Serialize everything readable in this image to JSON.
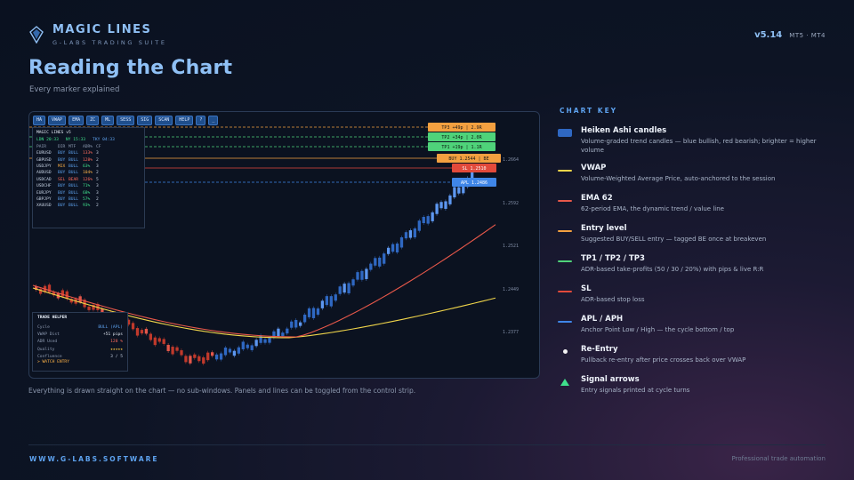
{
  "brand": {
    "name": "MAGIC LINES",
    "subtitle": "G-LABS TRADING SUITE"
  },
  "version": {
    "number": "v5.14",
    "platforms": "MT5 · MT4"
  },
  "page": {
    "title": "Reading the Chart",
    "subtitle": "Every marker explained"
  },
  "toolbar": [
    "HA",
    "VWAP",
    "EMA",
    "ZC",
    "ML",
    "SESS",
    "SIG",
    "SCAN",
    "HELP",
    "?",
    "_"
  ],
  "dashboard": {
    "title": "MAGIC LINES v5",
    "sessions": [
      {
        "label": "LDN 20:33",
        "color": "#3fe08c"
      },
      {
        "label": "NY 15:33",
        "color": "#3fe08c"
      },
      {
        "label": "TKY 04:33",
        "color": "#5ea3f0"
      }
    ],
    "headers": [
      "PAIR",
      "DIR",
      "MTF",
      "ADR%",
      "CF"
    ],
    "rows": [
      {
        "pair": "EURUSD",
        "dir": "BUY",
        "mtf": "BULL",
        "adr": "133%",
        "cf": "3",
        "dir_color": "#5ea3f0",
        "mtf_color": "#5ea3f0",
        "adr_color": "#ff6b5b"
      },
      {
        "pair": "GBPUSD",
        "dir": "BUY",
        "mtf": "BULL",
        "adr": "128%",
        "cf": "2",
        "dir_color": "#5ea3f0",
        "mtf_color": "#5ea3f0",
        "adr_color": "#ff6b5b"
      },
      {
        "pair": "USDJPY",
        "dir": "MIX",
        "mtf": "BULL",
        "adr": "63%",
        "cf": "3",
        "dir_color": "#ffb347",
        "mtf_color": "#5ea3f0",
        "adr_color": "#3fe08c"
      },
      {
        "pair": "AUDUSD",
        "dir": "BUY",
        "mtf": "BULL",
        "adr": "104%",
        "cf": "2",
        "dir_color": "#5ea3f0",
        "mtf_color": "#5ea3f0",
        "adr_color": "#ffb347"
      },
      {
        "pair": "USDCAD",
        "dir": "SEL",
        "mtf": "BEAR",
        "adr": "126%",
        "cf": "5",
        "dir_color": "#ff6b5b",
        "mtf_color": "#ff6b5b",
        "adr_color": "#ff6b5b"
      },
      {
        "pair": "USDCHF",
        "dir": "BUY",
        "mtf": "BULL",
        "adr": "71%",
        "cf": "3",
        "dir_color": "#5ea3f0",
        "mtf_color": "#5ea3f0",
        "adr_color": "#3fe08c"
      },
      {
        "pair": "EURJPY",
        "dir": "BUY",
        "mtf": "BULL",
        "adr": "68%",
        "cf": "3",
        "dir_color": "#5ea3f0",
        "mtf_color": "#5ea3f0",
        "adr_color": "#3fe08c"
      },
      {
        "pair": "GBPJPY",
        "dir": "BUY",
        "mtf": "BULL",
        "adr": "57%",
        "cf": "2",
        "dir_color": "#5ea3f0",
        "mtf_color": "#5ea3f0",
        "adr_color": "#3fe08c"
      },
      {
        "pair": "XAUUSD",
        "dir": "BUY",
        "mtf": "BULL",
        "adr": "93%",
        "cf": "2",
        "dir_color": "#5ea3f0",
        "mtf_color": "#5ea3f0",
        "adr_color": "#3fe08c"
      }
    ]
  },
  "trade_helper": {
    "title": "TRADE HELPER",
    "rows": [
      {
        "label": "Cycle",
        "value": "BULL (APL)",
        "color": "#5ea3f0"
      },
      {
        "label": "VWAP Dist",
        "value": "+51 pips",
        "color": "#e6edf7"
      },
      {
        "label": "ADR Used",
        "value": "128 %",
        "color": "#ff6b5b"
      },
      {
        "label": "Quality",
        "value": "★★★★★",
        "color": "#ffc83d"
      },
      {
        "label": "Confluence",
        "value": "3 / 5",
        "color": "#c6d2e3"
      }
    ],
    "alert": "> WATCH ENTRY"
  },
  "chart_tags": {
    "tp3": "TP3 +49p | 2.9R",
    "tp2": "TP2 +34p | 2.0R",
    "tp1": "TP1 +19p | 1.1R",
    "entry": "BUY 1.2544 | BE",
    "sl": "SL 1.2510",
    "apl": "APL 1.2486"
  },
  "price_ticks": [
    "1.2664",
    "1.2592",
    "1.2521",
    "1.2449",
    "1.2377"
  ],
  "colors": {
    "bull": "#2f68c2",
    "bull_bright": "#5d97f0",
    "bear": "#c0392b",
    "bear_bright": "#e4574a",
    "vwap": "#f0d54a",
    "ema": "#e8584a",
    "entry": "#f3a040",
    "tp": "#4fd37a",
    "sl": "#e24a3b",
    "apl": "#3f86e8"
  },
  "caption": "Everything is drawn straight on the chart — no sub-windows. Panels and lines can be toggled from the control strip.",
  "key": {
    "title": "CHART KEY",
    "items": [
      {
        "name": "Heiken Ashi candles",
        "desc": "Volume-graded trend candles — blue bullish, red bearish; brighter = higher volume",
        "marker": "rect",
        "color": "#2f68c2"
      },
      {
        "name": "VWAP",
        "desc": "Volume-Weighted Average Price, auto-anchored to the session",
        "marker": "line",
        "color": "#f0d54a"
      },
      {
        "name": "EMA 62",
        "desc": "62-period EMA, the dynamic trend / value line",
        "marker": "line",
        "color": "#e8584a"
      },
      {
        "name": "Entry level",
        "desc": "Suggested BUY/SELL entry — tagged BE once at breakeven",
        "marker": "line",
        "color": "#f3a040"
      },
      {
        "name": "TP1 / TP2 / TP3",
        "desc": "ADR-based take-profits (50 / 30 / 20%) with pips & live R:R",
        "marker": "line",
        "color": "#4fd37a"
      },
      {
        "name": "SL",
        "desc": "ADR-based stop loss",
        "marker": "line",
        "color": "#e24a3b"
      },
      {
        "name": "APL / APH",
        "desc": "Anchor Point Low / High — the cycle bottom / top",
        "marker": "line",
        "color": "#3f86e8"
      },
      {
        "name": "Re-Entry",
        "desc": "Pullback re-entry after price crosses back over VWAP",
        "marker": "dot",
        "color": "#f2f2f2"
      },
      {
        "name": "Signal arrows",
        "desc": "Entry signals printed at cycle turns",
        "marker": "triangle",
        "color": "#3fe08c"
      }
    ]
  },
  "footer": {
    "url": "WWW.G-LABS.SOFTWARE",
    "tagline": "Professional trade automation"
  }
}
